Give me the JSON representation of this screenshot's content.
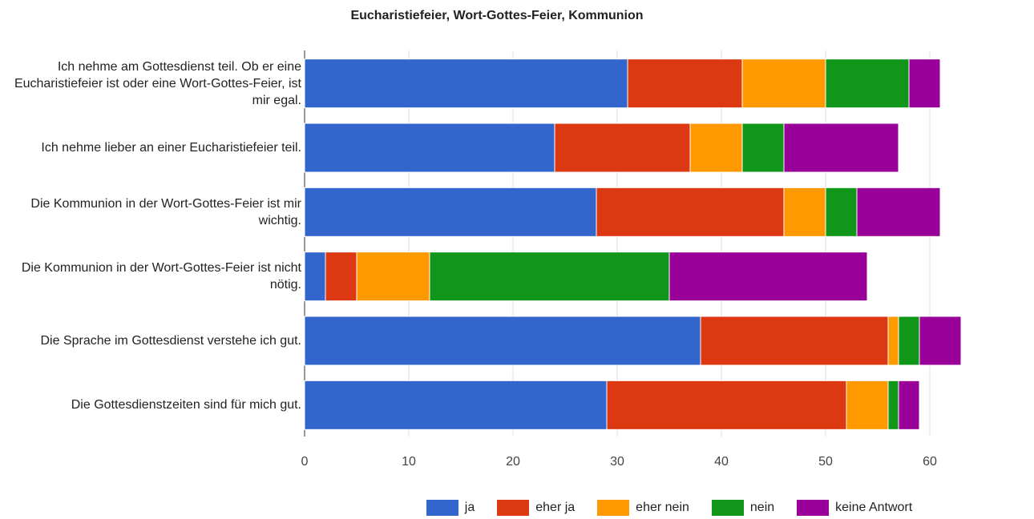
{
  "chart_data": {
    "type": "stacked-barh",
    "title": "Eucharistiefeier, Wort-Gottes-Feier, Kommunion",
    "categories": [
      "Ich nehme am Gottesdienst teil. Ob er eine Eucharistiefeier ist oder eine Wort-Gottes-Feier, ist mir egal.",
      "Ich nehme lieber an einer Eucharistiefeier teil.",
      "Die Kommunion in der Wort-Gottes-Feier ist mir wichtig.",
      "Die Kommunion in der Wort-Gottes-Feier ist nicht nötig.",
      "Die Sprache im Gottesdienst verstehe ich gut.",
      "Die Gottesdienstzeiten sind für mich gut."
    ],
    "series": [
      {
        "name": "ja",
        "color": "#3366cc",
        "values": [
          31,
          24,
          28,
          2,
          38,
          29
        ]
      },
      {
        "name": "eher ja",
        "color": "#dc3912",
        "values": [
          11,
          13,
          18,
          3,
          18,
          23
        ]
      },
      {
        "name": "eher nein",
        "color": "#ff9900",
        "values": [
          8,
          5,
          4,
          7,
          1,
          4
        ]
      },
      {
        "name": "nein",
        "color": "#109618",
        "values": [
          8,
          4,
          3,
          23,
          2,
          1
        ]
      },
      {
        "name": "keine Antwort",
        "color": "#990099",
        "values": [
          3,
          11,
          8,
          19,
          4,
          2
        ]
      }
    ],
    "xlim": [
      0,
      70
    ],
    "xticks": [
      0,
      10,
      20,
      30,
      40,
      50,
      60
    ],
    "grid": true
  }
}
